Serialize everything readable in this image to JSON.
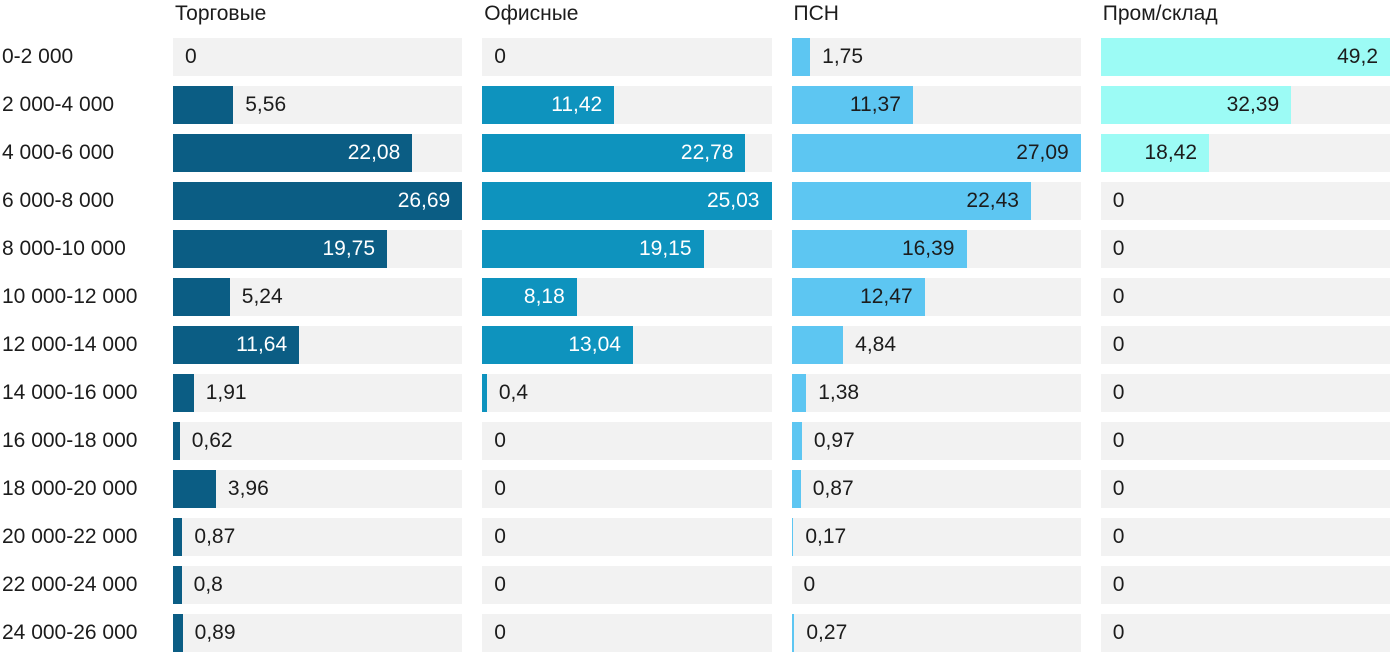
{
  "chart_data": {
    "type": "bar",
    "orientation": "horizontal",
    "title": "",
    "xlabel": "",
    "ylabel": "",
    "legend_position": "top-as-column-headers",
    "grid": false,
    "scaling": "each column scaled independently so its max value fills the track width",
    "value_label_format": "comma-decimal",
    "categories": [
      "0-2 000",
      "2 000-4 000",
      "4 000-6 000",
      "6 000-8 000",
      "8 000-10 000",
      "10 000-12 000",
      "12 000-14 000",
      "14 000-16 000",
      "16 000-18 000",
      "18 000-20 000",
      "20 000-22 000",
      "22 000-24 000",
      "24 000-26 000"
    ],
    "series": [
      {
        "name": "Торговые",
        "color": "#0b5d84",
        "inside_label_color": "#ffffff",
        "values": [
          0,
          5.56,
          22.08,
          26.69,
          19.75,
          5.24,
          11.64,
          1.91,
          0.62,
          3.96,
          0.87,
          0.8,
          0.89
        ]
      },
      {
        "name": "Офисные",
        "color": "#0e93be",
        "inside_label_color": "#ffffff",
        "values": [
          0,
          11.42,
          22.78,
          25.03,
          19.15,
          8.18,
          13.04,
          0.4,
          0,
          0,
          0,
          0,
          0
        ]
      },
      {
        "name": "ПСН",
        "color": "#5dc6f2",
        "inside_label_color": "#1c1c1c",
        "values": [
          1.75,
          11.37,
          27.09,
          22.43,
          16.39,
          12.47,
          4.84,
          1.38,
          0.97,
          0.87,
          0.17,
          0,
          0.27
        ]
      },
      {
        "name": "Пром/склад",
        "color": "#9cfbf5",
        "inside_label_color": "#1c1c1c",
        "values": [
          49.2,
          32.39,
          18.42,
          0,
          0,
          0,
          0,
          0,
          0,
          0,
          0,
          0,
          0
        ]
      }
    ],
    "colors": {
      "track_background": "#f2f2f2",
      "page_background": "#ffffff",
      "text": "#1c1c1c"
    }
  }
}
